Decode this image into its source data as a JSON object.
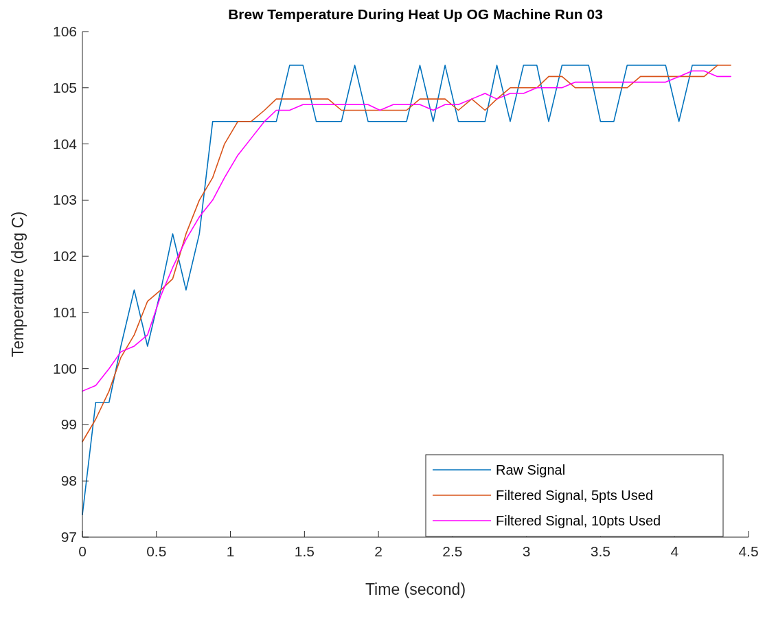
{
  "chart_data": {
    "type": "line",
    "title": "Brew Temperature During Heat Up OG Machine Run 03",
    "xlabel": "Time (second)",
    "ylabel": "Temperature (deg C)",
    "x": [
      0,
      0.09,
      0.18,
      0.26,
      0.35,
      0.44,
      0.53,
      0.61,
      0.7,
      0.79,
      0.88,
      0.96,
      1.05,
      1.14,
      1.23,
      1.31,
      1.4,
      1.49,
      1.58,
      1.66,
      1.75,
      1.84,
      1.93,
      2.01,
      2.1,
      2.19,
      2.28,
      2.37,
      2.45,
      2.54,
      2.63,
      2.72,
      2.8,
      2.89,
      2.98,
      3.07,
      3.15,
      3.24,
      3.33,
      3.42,
      3.5,
      3.59,
      3.68,
      3.77,
      3.85,
      3.94,
      4.03,
      4.12,
      4.2,
      4.29,
      4.38
    ],
    "series": [
      {
        "name": "Raw Signal",
        "color": "#0072bd",
        "values": [
          97.4,
          99.4,
          99.4,
          100.4,
          101.4,
          100.4,
          101.4,
          102.4,
          101.4,
          102.4,
          104.4,
          104.4,
          104.4,
          104.4,
          104.4,
          104.4,
          105.4,
          105.4,
          104.4,
          104.4,
          104.4,
          105.4,
          104.4,
          104.4,
          104.4,
          104.4,
          105.4,
          104.4,
          105.4,
          104.4,
          104.4,
          104.4,
          105.4,
          104.4,
          105.4,
          105.4,
          104.4,
          105.4,
          105.4,
          105.4,
          104.4,
          104.4,
          105.4,
          105.4,
          105.4,
          105.4,
          104.4,
          105.4,
          105.4,
          105.4,
          null
        ]
      },
      {
        "name": "Filtered Signal, 5pts Used",
        "color": "#d95319",
        "values": [
          98.7,
          99.1,
          99.6,
          100.2,
          100.6,
          101.2,
          101.4,
          101.6,
          102.4,
          103.0,
          103.4,
          104.0,
          104.4,
          104.4,
          104.6,
          104.8,
          104.8,
          104.8,
          104.8,
          104.8,
          104.6,
          104.6,
          104.6,
          104.6,
          104.6,
          104.6,
          104.8,
          104.8,
          104.8,
          104.6,
          104.8,
          104.6,
          104.8,
          105.0,
          105.0,
          105.0,
          105.2,
          105.2,
          105.0,
          105.0,
          105.0,
          105.0,
          105.0,
          105.2,
          105.2,
          105.2,
          105.2,
          105.2,
          105.2,
          105.4,
          105.4
        ]
      },
      {
        "name": "Filtered Signal, 10pts Used",
        "color": "#ff00ff",
        "values": [
          99.6,
          99.7,
          100.0,
          100.3,
          100.4,
          100.6,
          101.3,
          101.8,
          102.3,
          102.7,
          103.0,
          103.4,
          103.8,
          104.1,
          104.4,
          104.6,
          104.6,
          104.7,
          104.7,
          104.7,
          104.7,
          104.7,
          104.7,
          104.6,
          104.7,
          104.7,
          104.7,
          104.6,
          104.7,
          104.7,
          104.8,
          104.9,
          104.8,
          104.9,
          104.9,
          105.0,
          105.0,
          105.0,
          105.1,
          105.1,
          105.1,
          105.1,
          105.1,
          105.1,
          105.1,
          105.1,
          105.2,
          105.3,
          105.3,
          105.2,
          105.2
        ]
      }
    ],
    "xlim": [
      0,
      4.5
    ],
    "xticks": [
      0,
      0.5,
      1,
      1.5,
      2,
      2.5,
      3,
      3.5,
      4,
      4.5
    ],
    "ylim": [
      97,
      106
    ],
    "yticks": [
      97,
      98,
      99,
      100,
      101,
      102,
      103,
      104,
      105,
      106
    ],
    "legend": "bottom right"
  }
}
